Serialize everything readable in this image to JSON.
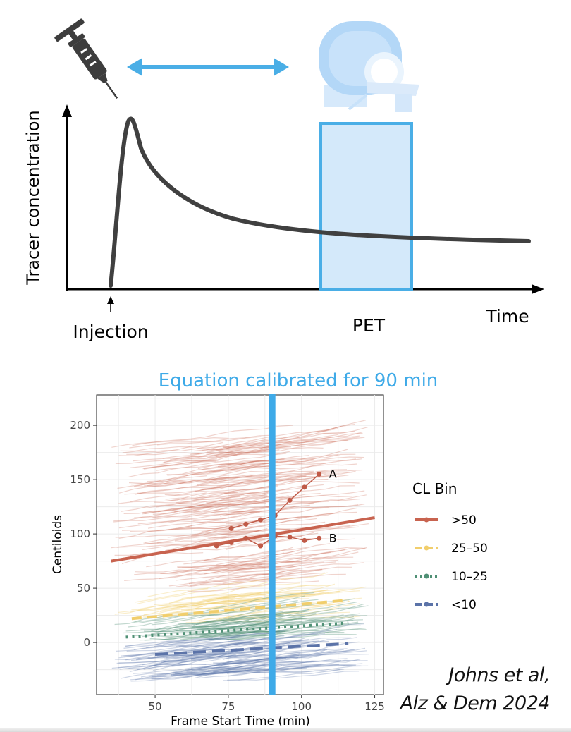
{
  "schematic": {
    "ylabel": "Tracer concentration",
    "xlabel": "Time",
    "injection_label": "Injection",
    "pet_label": "PET",
    "icons": {
      "syringe": "syringe-icon",
      "scanner": "pet-scanner-icon",
      "arrow": "double-arrow-icon"
    },
    "colors": {
      "curve": "#404040",
      "pet_fill": "#d4e9fa",
      "pet_stroke": "#4aaee6",
      "arrow": "#4aaee6"
    }
  },
  "chart_data": {
    "type": "line",
    "title": "Equation calibrated for 90 min",
    "xlabel": "Frame Start Time (min)",
    "ylabel": "Centiloids",
    "xlim": [
      30,
      128
    ],
    "ylim": [
      -48,
      228
    ],
    "x_ticks": [
      50,
      75,
      100,
      125
    ],
    "y_ticks": [
      0,
      50,
      100,
      150,
      200
    ],
    "grid": true,
    "legend_title": "CL Bin",
    "legend_position": "right",
    "vertical_line": {
      "x": 90,
      "color": "#3eaae8"
    },
    "series": [
      {
        "name": ">50",
        "color": "#c8634f",
        "style": "solid",
        "fit": {
          "x": [
            35,
            125
          ],
          "y": [
            75,
            115
          ]
        }
      },
      {
        "name": "25–50",
        "color": "#f1ce6c",
        "style": "dashed",
        "fit": {
          "x": [
            42,
            116
          ],
          "y": [
            22,
            39
          ]
        }
      },
      {
        "name": "10–25",
        "color": "#4f9075",
        "style": "dotted",
        "fit": {
          "x": [
            40,
            116
          ],
          "y": [
            5,
            18
          ]
        }
      },
      {
        "name": "<10",
        "color": "#5b73a8",
        "style": "longdash",
        "fit": {
          "x": [
            50,
            116
          ],
          "y": [
            -11,
            -1
          ]
        }
      }
    ],
    "highlighted": [
      {
        "label": "A",
        "x": [
          76,
          81,
          86,
          91,
          96,
          101,
          106
        ],
        "y": [
          105,
          109,
          113,
          117,
          131,
          143,
          155
        ]
      },
      {
        "label": "B",
        "x": [
          71,
          76,
          81,
          86,
          91,
          96,
          101,
          106
        ],
        "y": [
          89,
          92,
          96,
          89,
          98,
          97,
          94,
          96
        ]
      }
    ]
  },
  "citation": {
    "line1": "Johns et al,",
    "line2": "Alz & Dem 2024"
  }
}
